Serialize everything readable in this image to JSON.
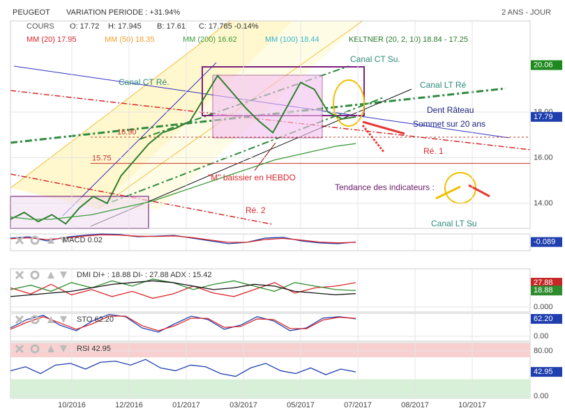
{
  "header": {
    "symbol": "PEUGEOT",
    "variation": "VARIATION PERIODE : +31.94%",
    "period": "2 ANS - JOUR",
    "quote": [
      {
        "text": "COURS",
        "color": "#555555"
      },
      {
        "text": "O: 17.72",
        "color": "#333333"
      },
      {
        "text": "H: 17.945",
        "color": "#333333"
      },
      {
        "text": "B: 17.61",
        "color": "#333333"
      },
      {
        "text": "C: 17.785 -0.14%",
        "color": "#333333"
      }
    ],
    "indicators": [
      {
        "text": "MM (20) 17.95",
        "color": "#d9262a"
      },
      {
        "text": "MM (50) 18.35",
        "color": "#f0a030"
      },
      {
        "text": "MM (200) 16.62",
        "color": "#3a9a3a"
      },
      {
        "text": "MM (100) 18.44",
        "color": "#35b7c8"
      },
      {
        "text": "KELTNER (20, 2, 10) 18.84 - 17.25",
        "color": "#2a7a2a"
      }
    ]
  },
  "chart_data": [
    {
      "type": "line",
      "xticks": [
        "10/2016",
        "12/2016",
        "01/2017",
        "03/2017",
        "05/2017",
        "07/2017",
        "08/2017",
        "10/2017"
      ],
      "ylim": [
        12.9,
        22.0
      ],
      "yticks": [
        {
          "value": 14,
          "label": "14.00"
        },
        {
          "value": 16,
          "label": "16.00"
        },
        {
          "value": 18,
          "label": "18.00"
        }
      ],
      "series": [
        {
          "color": "#2f7d2f",
          "values": [
            13.3,
            13.6,
            13.2,
            13.5,
            13.1,
            13.8,
            14.3,
            14.0,
            15.2,
            15.9,
            16.6,
            17.1,
            17.3,
            17.6,
            18.6,
            19.6,
            18.9,
            18.2,
            17.6,
            17.1,
            18.2,
            19.3,
            19.0,
            18.0,
            17.7,
            17.79
          ],
          "last_label": "17.79",
          "box": "#1f3fae"
        },
        {
          "color": "#3a9a3a",
          "values": [
            13.4,
            13.3,
            13.3,
            13.4,
            13.5,
            13.7,
            13.9,
            14.1,
            14.4,
            14.7,
            15.0,
            15.3,
            15.6,
            15.9,
            16.1,
            16.3,
            16.5,
            16.62
          ]
        }
      ],
      "levels": [
        {
          "value": 16.9,
          "label": "16.90",
          "color": "#c0392b"
        },
        {
          "value": 15.75,
          "label": "15.75",
          "color": "#c0392b"
        }
      ],
      "marker": {
        "value": 20.06,
        "color": "#1e8a1e"
      },
      "annotations": [
        {
          "text": "Canal CT Su.",
          "color": "#2a8a7a"
        },
        {
          "text": "Canal CT Ré.",
          "color": "#2a8a7a"
        },
        {
          "text": "Canal LT Ré",
          "color": "#2a8a7a"
        },
        {
          "text": "Dent Râteau",
          "color": "#1a237e"
        },
        {
          "text": "Sommet sur 20 ans",
          "color": "#1a237e"
        },
        {
          "text": "Ré. 1",
          "color": "#d9262a"
        },
        {
          "text": "Ré. 2",
          "color": "#d9262a"
        },
        {
          "text": "Tendance des indicateurs :",
          "color": "#6a1b6a"
        },
        {
          "text": "Canal LT Su",
          "color": "#2a8a7a"
        },
        {
          "text": "\"M\" baissier en HEBDO",
          "color": "#d9262a"
        }
      ]
    },
    {
      "type": "line",
      "title": "MACD 0.02",
      "ylim": [
        -0.4,
        0.2
      ],
      "series": [
        {
          "color": "#1f3fae",
          "values": [
            0.05,
            0.1,
            -0.05,
            0.08,
            0.15,
            0.2,
            0.18,
            0.1,
            0.12,
            0.15,
            0.05,
            -0.05,
            -0.15,
            -0.1,
            0.05,
            0.08,
            -0.05,
            -0.12,
            -0.15,
            -0.089
          ],
          "last_label": "-0.089",
          "box": "#1f3fae"
        },
        {
          "color": "#d9262a",
          "values": [
            0.03,
            0.06,
            0,
            0.05,
            0.12,
            0.17,
            0.16,
            0.12,
            0.11,
            0.13,
            0.07,
            -0.02,
            -0.1,
            -0.1,
            0,
            0.04,
            -0.02,
            -0.09,
            -0.12,
            -0.1
          ]
        }
      ]
    },
    {
      "type": "line",
      "title": "DMI DI+ : 18.88 DI- : 27.88 ADX : 15.42",
      "ylim": [
        -5.6,
        43.8
      ],
      "yticks": [
        {
          "value": 0,
          "label": "0.000"
        }
      ],
      "series": [
        {
          "color": "#d9262a",
          "values": [
            22,
            15,
            26,
            14,
            20,
            12,
            18,
            10,
            15,
            24,
            16,
            12,
            20,
            28,
            16,
            22,
            24,
            27.88
          ],
          "last_label": "27.88",
          "box": "#c62828"
        },
        {
          "color": "#2e8b2e",
          "values": [
            20,
            25,
            18,
            28,
            22,
            30,
            24,
            32,
            28,
            20,
            26,
            30,
            24,
            18,
            28,
            24,
            20,
            18.88
          ],
          "last_label": "18.88",
          "box": "#2e8b2e"
        },
        {
          "color": "#111111",
          "values": [
            12,
            14,
            16,
            18,
            22,
            26,
            28,
            30,
            28,
            24,
            20,
            22,
            26,
            24,
            18,
            16,
            14,
            15.42
          ]
        }
      ]
    },
    {
      "type": "line",
      "title": "STO 62.20",
      "ylim": [
        -17.4,
        82
      ],
      "yticks": [
        {
          "value": 0,
          "label": "0.00"
        }
      ],
      "series": [
        {
          "color": "#1f3fae",
          "values": [
            30,
            60,
            75,
            40,
            20,
            55,
            78,
            70,
            30,
            15,
            45,
            72,
            60,
            25,
            40,
            70,
            55,
            20,
            30,
            65,
            70,
            62.2
          ],
          "last_label": "62.20",
          "box": "#1f3fae"
        },
        {
          "color": "#d9262a",
          "values": [
            25,
            50,
            70,
            48,
            25,
            45,
            72,
            72,
            38,
            20,
            38,
            65,
            64,
            32,
            35,
            62,
            60,
            28,
            27,
            58,
            68,
            64
          ]
        }
      ]
    },
    {
      "type": "line",
      "title": "RSI 42.95",
      "ylim": [
        -3.7,
        94.8
      ],
      "yticks": [
        {
          "value": 0,
          "label": "0.00"
        },
        {
          "value": 80,
          "label": "80.00"
        }
      ],
      "series": [
        {
          "color": "#1f3fae",
          "values": [
            45,
            52,
            40,
            55,
            58,
            48,
            60,
            62,
            55,
            65,
            50,
            45,
            55,
            52,
            40,
            35,
            50,
            58,
            45,
            40,
            50,
            38,
            48,
            42.95
          ],
          "last_label": "42.95",
          "box": "#1f3fae"
        }
      ]
    }
  ]
}
